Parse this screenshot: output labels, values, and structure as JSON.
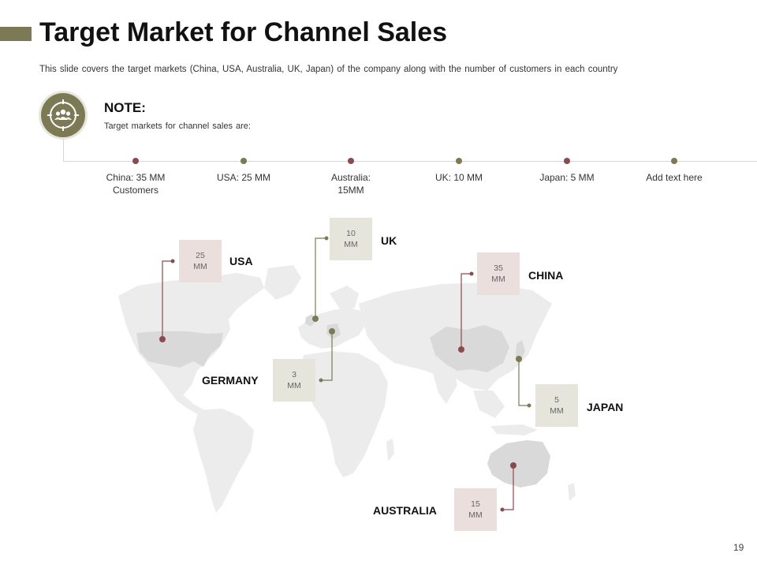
{
  "title": "Target Market for Channel Sales",
  "subtitle": "This slide covers the target markets (China, USA, Australia, UK, Japan) of the company along with the number of customers in each country",
  "note": {
    "title": "NOTE:",
    "text": "Target markets for channel sales are:",
    "icon": "group-target-icon"
  },
  "timeline": [
    {
      "line1": "China: 35 MM",
      "line2": "Customers"
    },
    {
      "line1": "USA: 25 MM",
      "line2": ""
    },
    {
      "line1": "Australia:",
      "line2": "15MM"
    },
    {
      "line1": "UK: 10 MM",
      "line2": ""
    },
    {
      "line1": "Japan: 5 MM",
      "line2": ""
    },
    {
      "line1": "Add text here",
      "line2": ""
    }
  ],
  "markets": {
    "usa": {
      "country": "USA",
      "value": "25",
      "unit": "MM"
    },
    "uk": {
      "country": "UK",
      "value": "10",
      "unit": "MM"
    },
    "china": {
      "country": "CHINA",
      "value": "35",
      "unit": "MM"
    },
    "germany": {
      "country": "GERMANY",
      "value": "3",
      "unit": "MM"
    },
    "japan": {
      "country": "JAPAN",
      "value": "5",
      "unit": "MM"
    },
    "australia": {
      "country": "AUSTRALIA",
      "value": "15",
      "unit": "MM"
    }
  },
  "page_number": "19",
  "colors": {
    "accent_olive": "#7b7a55",
    "accent_maroon": "#8b4a4d",
    "box_pink": "#eadfdc",
    "box_beige": "#e6e5dc",
    "map_land": "#ececec",
    "map_highlight": "#d9d9d9"
  }
}
